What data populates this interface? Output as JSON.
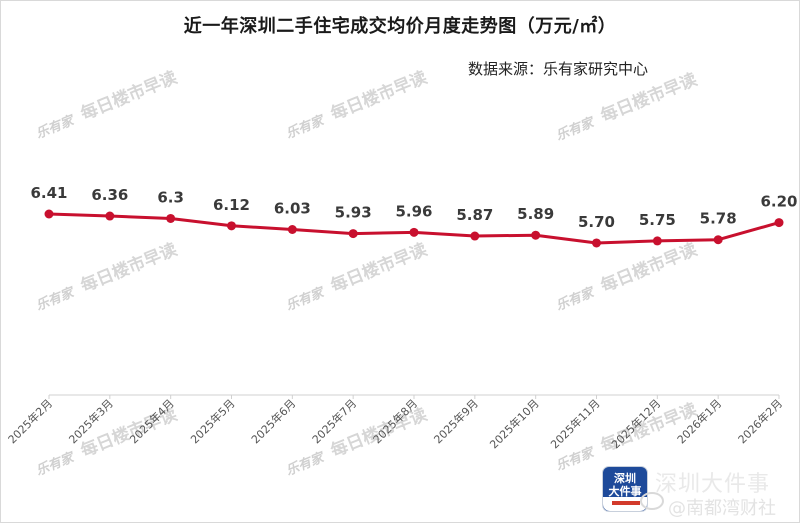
{
  "header": {
    "title": "近一年深圳二手住宅成交均价月度走势图（万元/㎡）",
    "source": "数据来源：乐有家研究中心"
  },
  "watermarks": {
    "brand": "乐有家",
    "text": "每日楼市早读"
  },
  "footer": {
    "logo_line1": "深圳",
    "logo_line2": "大件事",
    "title": "深圳大件事",
    "weibo_handle": "@南都湾财社"
  },
  "colors": {
    "line": "#c8102e",
    "axis": "#d0d0d0",
    "label": "#3a3a3a"
  },
  "chart_data": {
    "type": "line",
    "title": "近一年深圳二手住宅成交均价月度走势图（万元/㎡）",
    "subtitle": "数据来源：乐有家研究中心",
    "xlabel": "",
    "ylabel": "万元/㎡",
    "categories": [
      "2025年2月",
      "2025年3月",
      "2025年4月",
      "2025年5月",
      "2025年6月",
      "2025年7月",
      "2025年8月",
      "2025年9月",
      "2025年10月",
      "2025年11月",
      "2025年12月",
      "2026年1月",
      "2026年2月"
    ],
    "series": [
      {
        "name": "二手住宅成交均价",
        "values": [
          6.41,
          6.36,
          6.3,
          6.12,
          6.03,
          5.93,
          5.96,
          5.87,
          5.89,
          5.7,
          5.75,
          5.78,
          6.2
        ],
        "labels": [
          "6.41",
          "6.36",
          "6.3",
          "6.12",
          "6.03",
          "5.93",
          "5.96",
          "5.87",
          "5.89",
          "5.70",
          "5.75",
          "5.78",
          "6.20"
        ],
        "color": "#c8102e"
      }
    ],
    "grid": false,
    "legend": "none",
    "y_axis_visible": false
  }
}
